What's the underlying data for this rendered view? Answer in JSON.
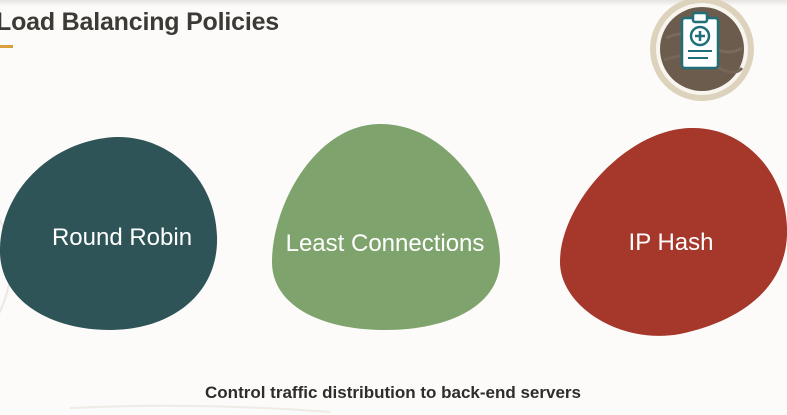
{
  "slide": {
    "title": "Load Balancing Policies",
    "subtitle": "Control traffic distribution to back-end servers"
  },
  "badge": {
    "icon": "clipboard-plus-icon"
  },
  "policies": [
    {
      "label": "Round Robin",
      "color": "#2f5457"
    },
    {
      "label": "Least Connections",
      "color": "#7fa36d"
    },
    {
      "label": "IP Hash",
      "color": "#a5372b"
    }
  ],
  "colors": {
    "accent": "#d9a13b",
    "badge_ring": "#d8ccb4",
    "badge_fill": "#6b5c4e"
  }
}
